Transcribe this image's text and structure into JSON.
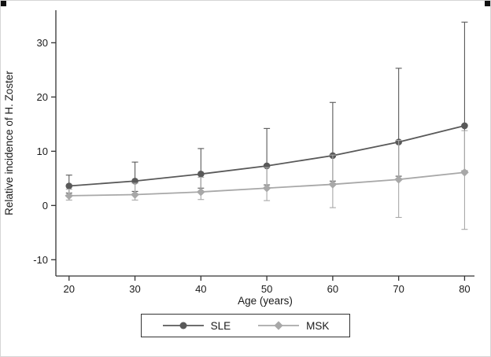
{
  "figure": {
    "background": "#ffffff",
    "axis_color": "#333333",
    "text_color": "#1a1a1a"
  },
  "legend": {
    "items": [
      {
        "label": "SLE",
        "marker": "circle",
        "color": "#595959"
      },
      {
        "label": "MSK",
        "marker": "diamond",
        "color": "#a8a8a8"
      }
    ]
  },
  "chart_data": {
    "type": "line",
    "title": "",
    "xlabel": "Age (years)",
    "ylabel": "Relative incidence of H. Zoster",
    "grid": false,
    "legend_position": "bottom",
    "x": [
      20,
      30,
      40,
      50,
      60,
      70,
      80
    ],
    "xticks": [
      20,
      30,
      40,
      50,
      60,
      70,
      80
    ],
    "yticks": [
      -10,
      0,
      10,
      20,
      30
    ],
    "xlim": [
      18,
      81.5
    ],
    "ylim": [
      -13,
      36
    ],
    "series": [
      {
        "name": "SLE",
        "marker": "circle",
        "color": "#595959",
        "values": [
          3.6,
          4.5,
          5.8,
          7.3,
          9.2,
          11.7,
          14.7
        ],
        "ci_upper": [
          5.6,
          8.0,
          10.5,
          14.2,
          19.0,
          25.3,
          33.8
        ],
        "ci_lower": [
          2.3,
          2.6,
          3.2,
          3.8,
          4.5,
          5.4,
          6.4
        ]
      },
      {
        "name": "MSK",
        "marker": "diamond",
        "color": "#a8a8a8",
        "values": [
          1.8,
          2.0,
          2.5,
          3.2,
          3.9,
          4.8,
          6.1
        ],
        "ci_upper": [
          3.0,
          4.1,
          5.2,
          7.0,
          9.3,
          12.0,
          13.8
        ],
        "ci_lower": [
          1.0,
          1.0,
          1.1,
          0.9,
          -0.4,
          -2.2,
          -4.4
        ]
      }
    ]
  }
}
